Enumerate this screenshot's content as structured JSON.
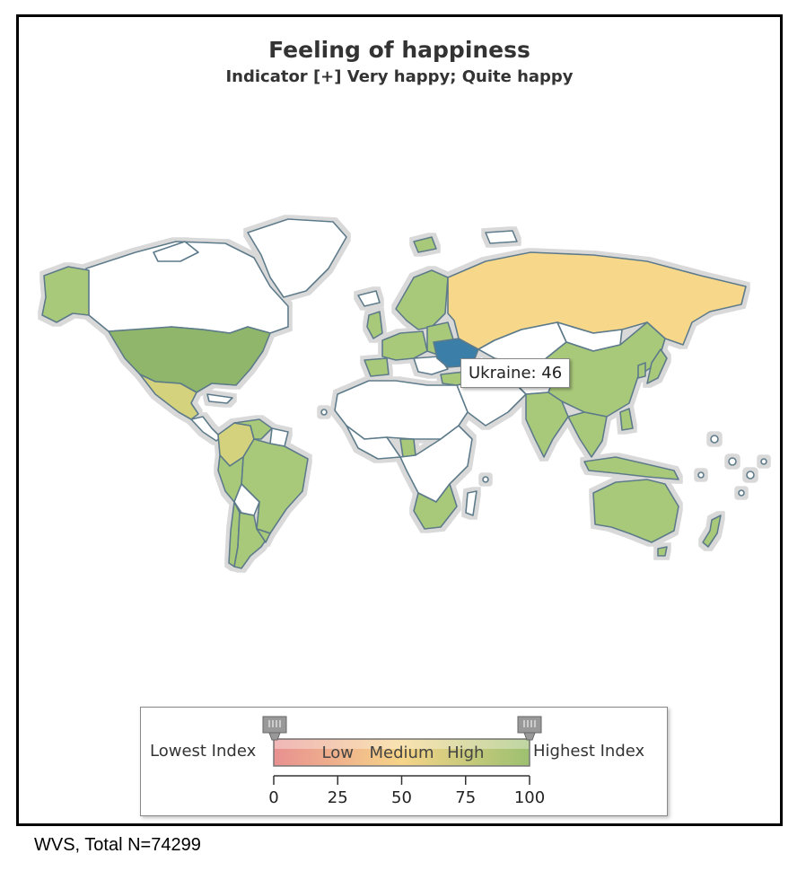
{
  "title": "Feeling of happiness",
  "subtitle": "Indicator [+] Very happy; Quite happy",
  "tooltip": {
    "country": "Ukraine",
    "value": 46,
    "text": "Ukraine: 46"
  },
  "legend": {
    "lowest": "Lowest Index",
    "highest": "Highest Index",
    "bands": [
      "Low",
      "Medium",
      "High"
    ],
    "ticks": [
      "0",
      "25",
      "50",
      "75",
      "100"
    ],
    "range": [
      0,
      100
    ],
    "colors": {
      "low": "#e89090",
      "medium": "#f6d488",
      "high": "#9cc070"
    }
  },
  "footer": "WVS, Total N=74299",
  "map_colors": {
    "no_data": "#ffffff",
    "high": "#a9c97a",
    "high_dark": "#8fb66a",
    "medium": "#f7d88a",
    "medium_high": "#d4d27c",
    "selected": "#3a7fa8",
    "border": "#5b7a8a",
    "shadow": "#d8d8d8"
  }
}
